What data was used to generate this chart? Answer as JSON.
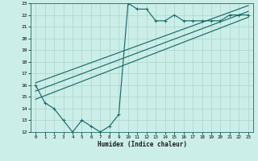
{
  "xlabel": "Humidex (Indice chaleur)",
  "bg_color": "#cceee8",
  "grid_color": "#b0d8d0",
  "line_color": "#1a6b6b",
  "xlim": [
    -0.5,
    23.5
  ],
  "ylim": [
    12,
    23
  ],
  "xticks": [
    0,
    1,
    2,
    3,
    4,
    5,
    6,
    7,
    8,
    9,
    10,
    11,
    12,
    13,
    14,
    15,
    16,
    17,
    18,
    19,
    20,
    21,
    22,
    23
  ],
  "yticks": [
    12,
    13,
    14,
    15,
    16,
    17,
    18,
    19,
    20,
    21,
    22,
    23
  ],
  "series1_x": [
    0,
    1,
    2,
    3,
    4,
    5,
    6,
    7,
    8,
    9,
    10,
    11,
    12,
    13,
    14,
    15,
    16,
    17,
    18,
    19,
    20,
    21,
    22,
    23
  ],
  "series1_y": [
    16,
    14.5,
    14,
    13,
    12,
    13,
    12.5,
    12,
    12.5,
    13.5,
    23,
    22.5,
    22.5,
    21.5,
    21.5,
    22,
    21.5,
    21.5,
    21.5,
    21.5,
    21.5,
    22,
    22,
    22
  ],
  "line1_x": [
    0,
    23
  ],
  "line1_y": [
    15.5,
    22.3
  ],
  "line2_x": [
    0,
    23
  ],
  "line2_y": [
    16.2,
    22.8
  ],
  "line3_x": [
    0,
    23
  ],
  "line3_y": [
    14.8,
    21.8
  ]
}
